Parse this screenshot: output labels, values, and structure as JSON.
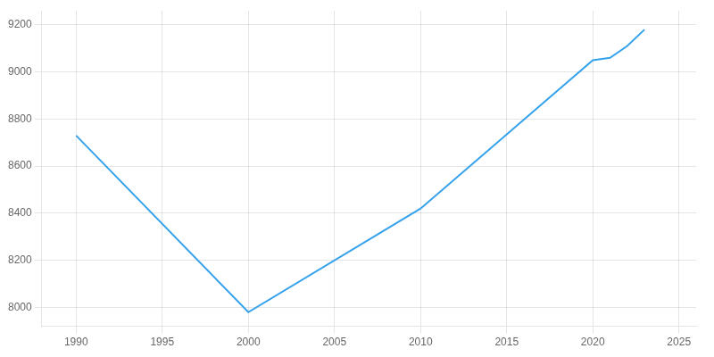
{
  "chart_data": {
    "type": "line",
    "x": [
      1990,
      2000,
      2010,
      2020,
      2021,
      2022,
      2023
    ],
    "values": [
      8730,
      7980,
      8420,
      9050,
      9060,
      9110,
      9180
    ],
    "xlim": [
      1988,
      2026
    ],
    "xticks": [
      1990,
      1995,
      2000,
      2005,
      2010,
      2015,
      2020,
      2025
    ],
    "ylim": [
      7920,
      9260
    ],
    "yticks": [
      8000,
      8200,
      8400,
      8600,
      8800,
      9000,
      9200
    ],
    "grid": true
  }
}
